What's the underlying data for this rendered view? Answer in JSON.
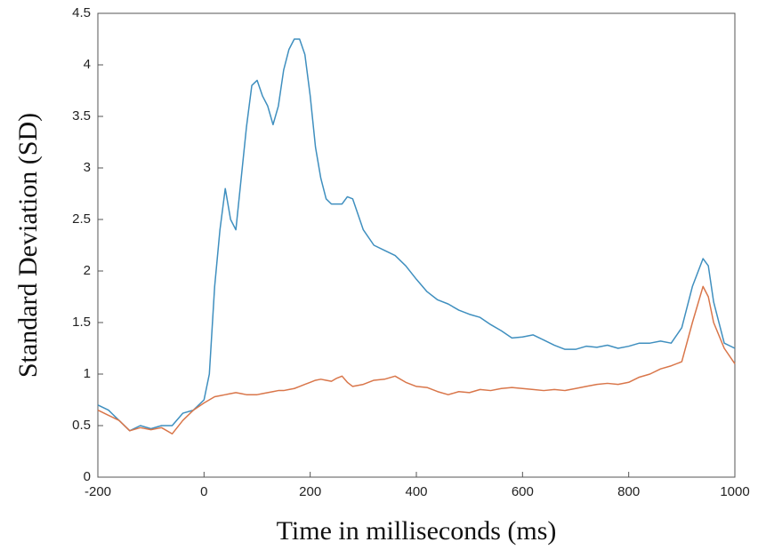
{
  "chart_data": {
    "type": "line",
    "x_label": "Time in milliseconds (ms)",
    "y_label": "Standard Deviation (SD)",
    "x": [
      -200,
      -180,
      -160,
      -140,
      -120,
      -100,
      -80,
      -60,
      -40,
      -20,
      0,
      10,
      20,
      30,
      40,
      50,
      60,
      70,
      80,
      90,
      100,
      110,
      120,
      130,
      140,
      150,
      160,
      170,
      180,
      190,
      200,
      210,
      220,
      230,
      240,
      250,
      260,
      270,
      280,
      300,
      320,
      340,
      360,
      380,
      400,
      420,
      440,
      460,
      480,
      500,
      520,
      540,
      560,
      580,
      600,
      620,
      640,
      660,
      680,
      700,
      720,
      740,
      760,
      780,
      800,
      820,
      840,
      860,
      880,
      900,
      920,
      940,
      950,
      960,
      980,
      1000
    ],
    "series": [
      {
        "color": "#3f8fbf",
        "values": [
          0.7,
          0.65,
          0.55,
          0.45,
          0.5,
          0.47,
          0.5,
          0.5,
          0.62,
          0.65,
          0.75,
          1.0,
          1.85,
          2.4,
          2.8,
          2.5,
          2.4,
          2.9,
          3.4,
          3.8,
          3.85,
          3.7,
          3.6,
          3.42,
          3.6,
          3.95,
          4.15,
          4.25,
          4.25,
          4.1,
          3.7,
          3.2,
          2.9,
          2.7,
          2.65,
          2.65,
          2.65,
          2.72,
          2.7,
          2.4,
          2.25,
          2.2,
          2.15,
          2.05,
          1.92,
          1.8,
          1.72,
          1.68,
          1.62,
          1.58,
          1.55,
          1.48,
          1.42,
          1.35,
          1.36,
          1.38,
          1.33,
          1.28,
          1.24,
          1.24,
          1.27,
          1.26,
          1.28,
          1.25,
          1.27,
          1.3,
          1.3,
          1.32,
          1.3,
          1.45,
          1.85,
          2.12,
          2.05,
          1.7,
          1.3,
          1.25
        ]
      },
      {
        "color": "#d9764a",
        "values": [
          0.65,
          0.6,
          0.55,
          0.45,
          0.48,
          0.46,
          0.48,
          0.42,
          0.55,
          0.65,
          0.72,
          0.75,
          0.78,
          0.79,
          0.8,
          0.81,
          0.82,
          0.81,
          0.8,
          0.8,
          0.8,
          0.81,
          0.82,
          0.83,
          0.84,
          0.84,
          0.85,
          0.86,
          0.88,
          0.9,
          0.92,
          0.94,
          0.95,
          0.94,
          0.93,
          0.96,
          0.98,
          0.92,
          0.88,
          0.9,
          0.94,
          0.95,
          0.98,
          0.92,
          0.88,
          0.87,
          0.83,
          0.8,
          0.83,
          0.82,
          0.85,
          0.84,
          0.86,
          0.87,
          0.86,
          0.85,
          0.84,
          0.85,
          0.84,
          0.86,
          0.88,
          0.9,
          0.91,
          0.9,
          0.92,
          0.97,
          1.0,
          1.05,
          1.08,
          1.12,
          1.5,
          1.85,
          1.75,
          1.5,
          1.25,
          1.1
        ]
      }
    ],
    "xlim": [
      -200,
      1000
    ],
    "xticks": [
      -200,
      0,
      200,
      400,
      600,
      800,
      1000
    ],
    "ylim": [
      0,
      4.5
    ],
    "yticks": [
      0,
      0.5,
      1,
      1.5,
      2,
      2.5,
      3,
      3.5,
      4,
      4.5
    ],
    "grid": false
  }
}
